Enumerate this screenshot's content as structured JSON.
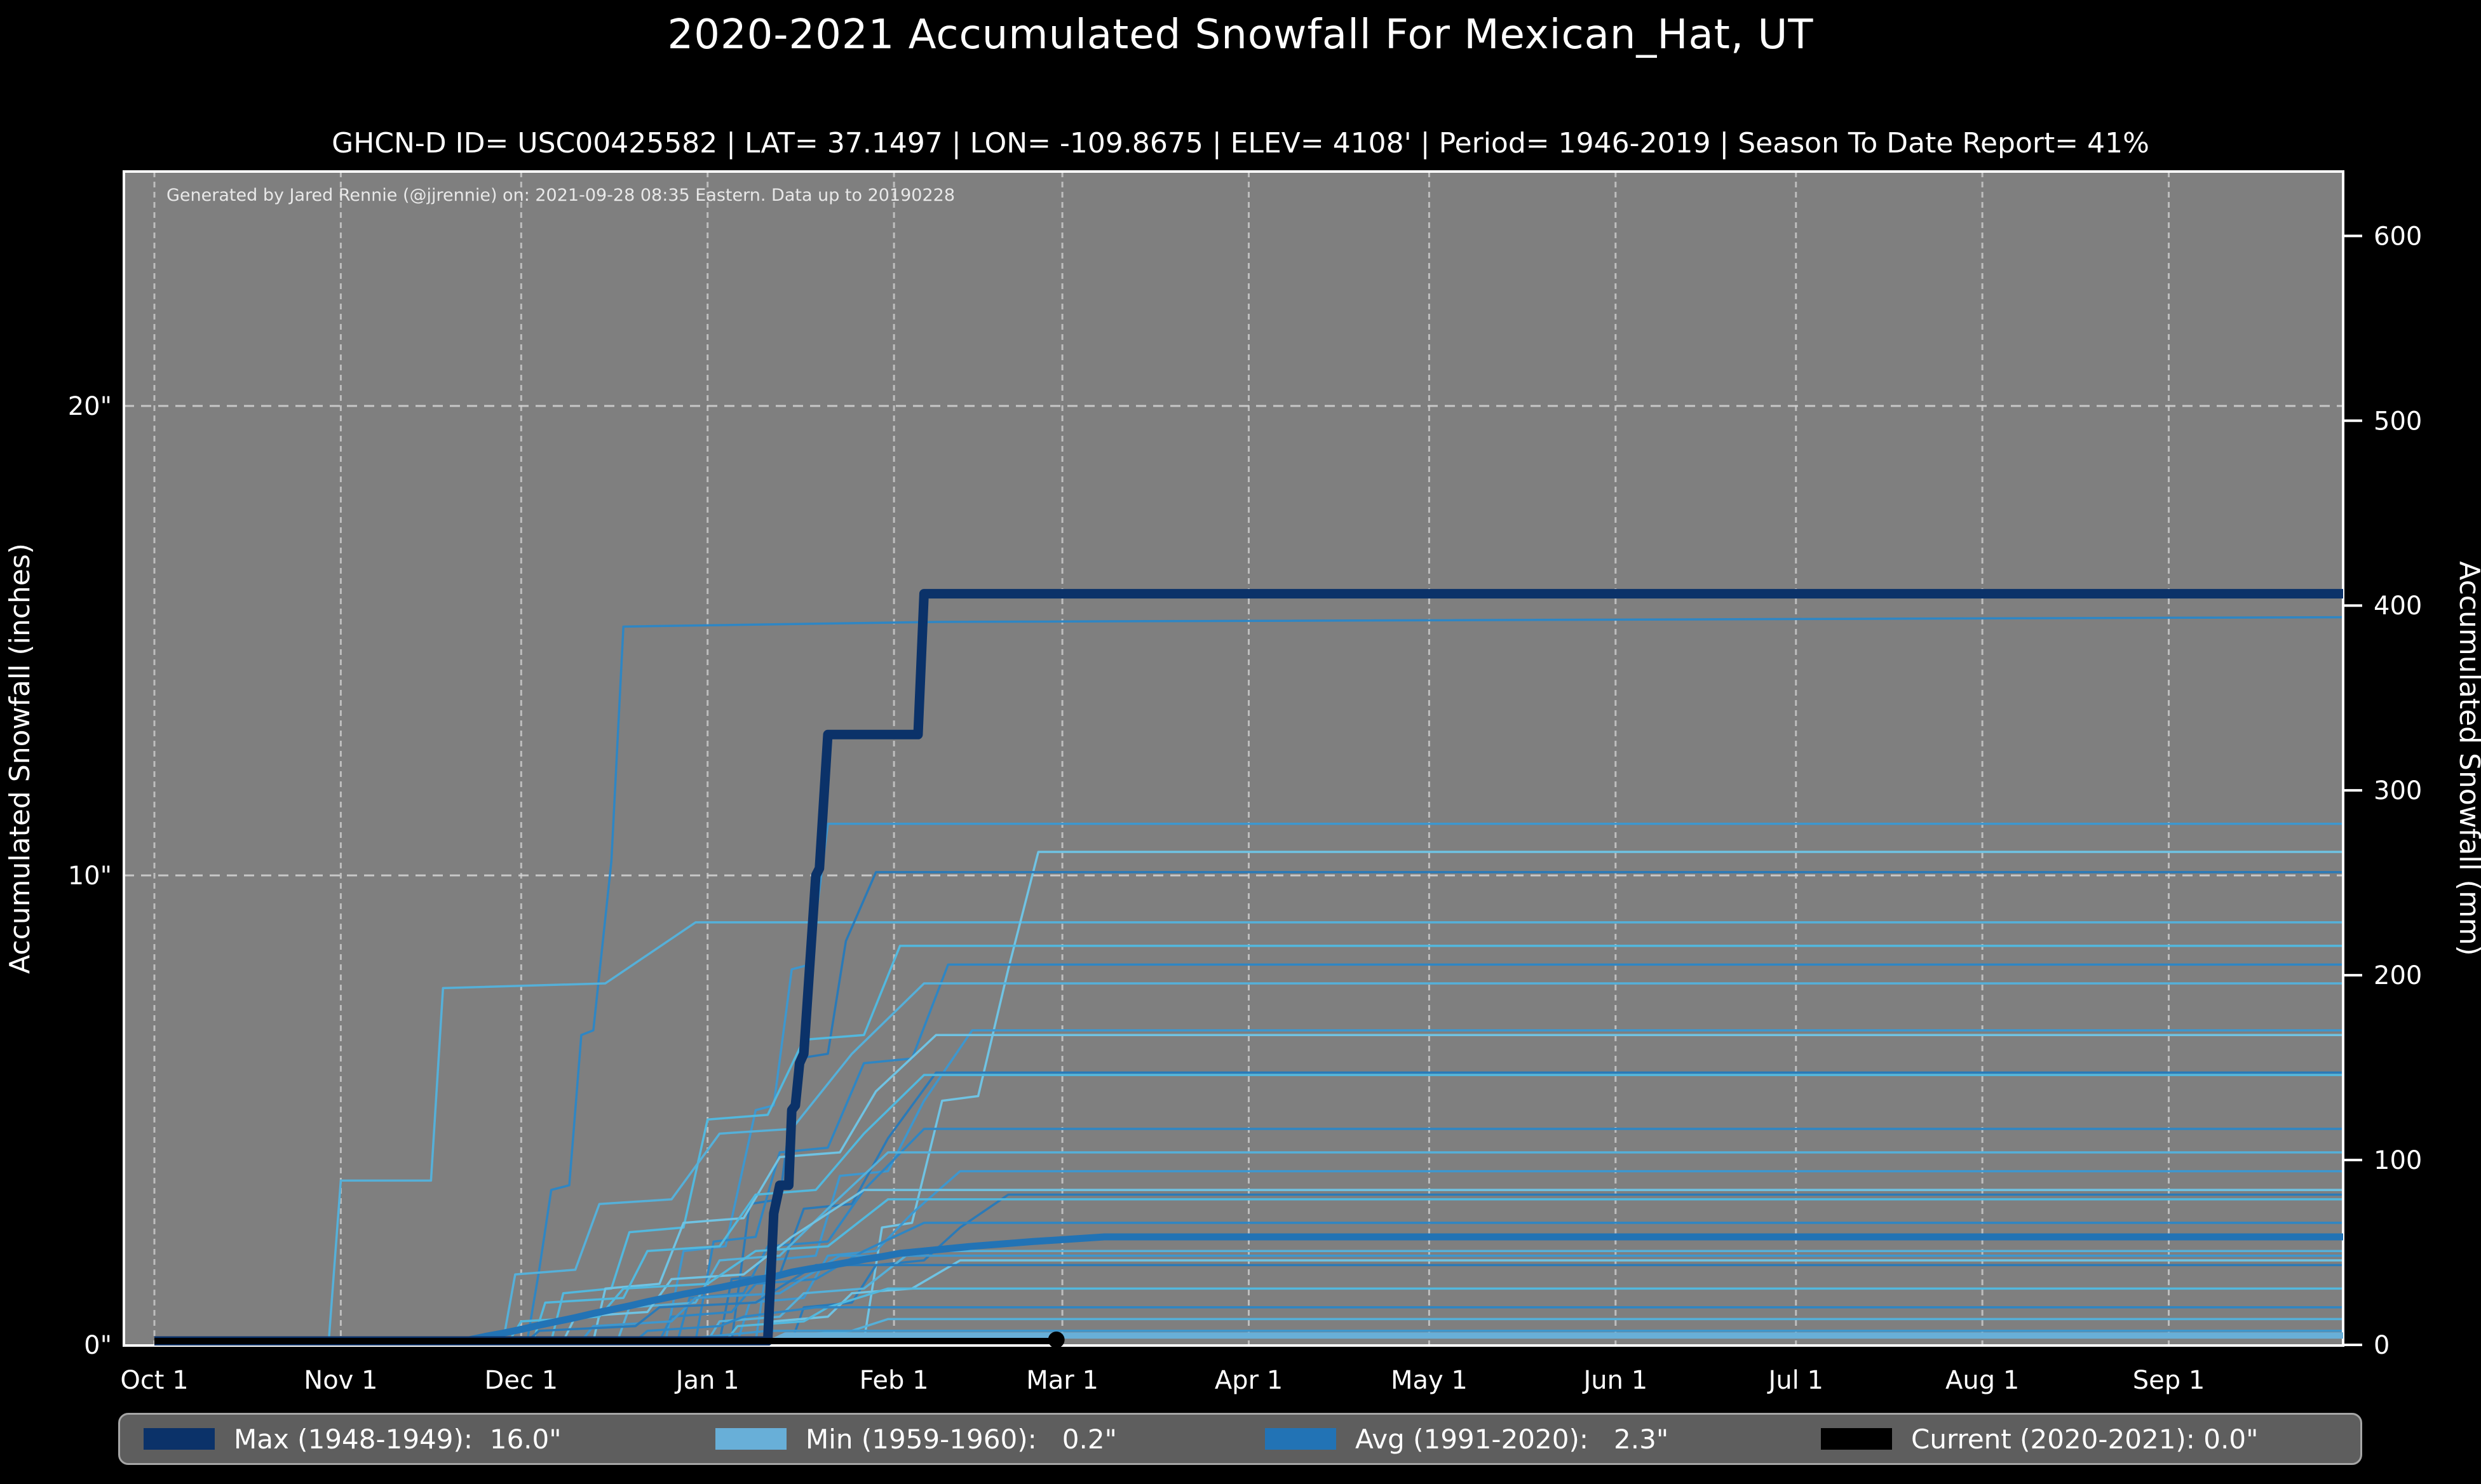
{
  "header": {
    "title": "2020-2021 Accumulated Snowfall For Mexican_Hat, UT",
    "subtitle": "GHCN-D ID= USC00425582 | LAT= 37.1497 | LON= -109.8675 | ELEV= 4108' | Period= 1946-2019 | Season To Date Report= 41%"
  },
  "attribution": "Generated by Jared Rennie (@jjrennie) on: 2021-09-28 08:35 Eastern. Data up to 20190228",
  "legend": {
    "items": [
      {
        "label": "Max (1948-1949):  16.0\"",
        "color": "#0b3269"
      },
      {
        "label": "Min (1959-1960):   0.2\"",
        "color": "#68afd8"
      },
      {
        "label": "Avg (1991-2020):   2.3\"",
        "color": "#2273b5"
      },
      {
        "label": "Current (2020-2021): 0.0\"",
        "color": "#000000"
      }
    ]
  },
  "chart_data": {
    "type": "line",
    "title": "2020-2021 Accumulated Snowfall For Mexican_Hat, UT",
    "x_axis": {
      "unit": "day-of-season (Oct 1 = 0)",
      "tick_labels": [
        "Oct 1",
        "Nov 1",
        "Dec 1",
        "Jan 1",
        "Feb 1",
        "Mar 1",
        "Apr 1",
        "May 1",
        "Jun 1",
        "Jul 1",
        "Aug 1",
        "Sep 1"
      ],
      "tick_days": [
        0,
        31,
        61,
        92,
        123,
        151,
        182,
        212,
        243,
        273,
        304,
        335
      ],
      "domain_days": [
        0,
        364
      ],
      "gridlines": "dashed vertical at each month tick"
    },
    "y_left": {
      "label": "Accumulated Snowfall (inches)",
      "ticks": [
        {
          "value": 0,
          "label": "0\""
        },
        {
          "value": 10,
          "label": "10\""
        },
        {
          "value": 20,
          "label": "20\""
        }
      ],
      "range": [
        0,
        25
      ],
      "gridlines_at": [
        10,
        20
      ]
    },
    "y_right": {
      "label": "Accumulated Snowfall (mm)",
      "ticks": [
        0,
        100,
        200,
        300,
        400,
        500,
        600
      ],
      "range_mm": [
        0,
        635
      ]
    },
    "series": [
      {
        "id": "max",
        "name": "Max (1948-1949)",
        "total_inches": 16.0,
        "color": "#0b3269",
        "width": 15,
        "points": [
          [
            0,
            0
          ],
          [
            102,
            0
          ],
          [
            103,
            2.8
          ],
          [
            104,
            3.4
          ],
          [
            105.5,
            3.4
          ],
          [
            106,
            5.0
          ],
          [
            106.6,
            5.1
          ],
          [
            107.3,
            6.0
          ],
          [
            108,
            6.2
          ],
          [
            110,
            10.0
          ],
          [
            110.6,
            10.15
          ],
          [
            112,
            13.0
          ],
          [
            127,
            13.0
          ],
          [
            128,
            16.0
          ],
          [
            364,
            16.0
          ]
        ]
      },
      {
        "id": "min",
        "name": "Min (1959-1960)",
        "total_inches": 0.2,
        "color": "#68afd8",
        "width": 10,
        "points": [
          [
            0,
            0
          ],
          [
            103,
            0
          ],
          [
            105,
            0.2
          ],
          [
            364,
            0.2
          ]
        ]
      },
      {
        "id": "avg",
        "name": "Avg (1991-2020)",
        "total_inches": 2.3,
        "color": "#2273b5",
        "width": 11,
        "points": [
          [
            0,
            0
          ],
          [
            45,
            0.02
          ],
          [
            52,
            0.1
          ],
          [
            55,
            0.18
          ],
          [
            58,
            0.25
          ],
          [
            61,
            0.33
          ],
          [
            64,
            0.42
          ],
          [
            67,
            0.5
          ],
          [
            70,
            0.58
          ],
          [
            73,
            0.67
          ],
          [
            76,
            0.75
          ],
          [
            79,
            0.83
          ],
          [
            82,
            0.92
          ],
          [
            85,
            1.0
          ],
          [
            88,
            1.08
          ],
          [
            91,
            1.15
          ],
          [
            94,
            1.22
          ],
          [
            97,
            1.3
          ],
          [
            100,
            1.38
          ],
          [
            103,
            1.45
          ],
          [
            106,
            1.55
          ],
          [
            109,
            1.62
          ],
          [
            112,
            1.68
          ],
          [
            115,
            1.75
          ],
          [
            118,
            1.82
          ],
          [
            121,
            1.88
          ],
          [
            124,
            1.95
          ],
          [
            128,
            2.0
          ],
          [
            132,
            2.05
          ],
          [
            136,
            2.1
          ],
          [
            141,
            2.15
          ],
          [
            146,
            2.2
          ],
          [
            152,
            2.25
          ],
          [
            158,
            2.3
          ],
          [
            364,
            2.3
          ]
        ]
      },
      {
        "id": "current",
        "name": "Current (2020-2021)",
        "total_inches": 0.0,
        "color": "#000000",
        "width": 10,
        "end_marker": true,
        "points": [
          [
            0,
            0
          ],
          [
            150,
            0
          ]
        ]
      }
    ],
    "background_seasons": {
      "description": "Individual seasons 1946-2019 drawn as thin blue staircase lines",
      "color_cycle": [
        "#2e86c4",
        "#55b0d9",
        "#3d97cf",
        "#6fc3e3",
        "#2a7ab8",
        "#52b8de"
      ],
      "lines": [
        [
          [
            62,
            0
          ],
          [
            64,
            1.6
          ],
          [
            66,
            3.3
          ],
          [
            69,
            3.4
          ],
          [
            71,
            6.6
          ],
          [
            73,
            6.7
          ],
          [
            76,
            10.3
          ],
          [
            78,
            15.3
          ],
          [
            130,
            15.4
          ],
          [
            364,
            15.5
          ]
        ],
        [
          [
            29,
            0
          ],
          [
            31,
            3.5
          ],
          [
            46,
            3.5
          ],
          [
            48,
            7.6
          ],
          [
            75,
            7.7
          ],
          [
            90,
            9.0
          ],
          [
            364,
            9.0
          ]
        ],
        [
          [
            85,
            0
          ],
          [
            88,
            2.0
          ],
          [
            95,
            2.1
          ],
          [
            100,
            5.0
          ],
          [
            103,
            5.1
          ],
          [
            106,
            8.0
          ],
          [
            109,
            8.1
          ],
          [
            112,
            11.1
          ],
          [
            364,
            11.1
          ]
        ],
        [
          [
            118,
            0
          ],
          [
            121,
            2.5
          ],
          [
            126,
            2.6
          ],
          [
            131,
            5.2
          ],
          [
            137,
            5.3
          ],
          [
            142,
            8.0
          ],
          [
            147,
            10.5
          ],
          [
            364,
            10.5
          ]
        ],
        [
          [
            96,
            0
          ],
          [
            99,
            3.0
          ],
          [
            104,
            3.1
          ],
          [
            107,
            6.1
          ],
          [
            112,
            6.2
          ],
          [
            115,
            8.6
          ],
          [
            120,
            10.07
          ],
          [
            364,
            10.07
          ]
        ],
        [
          [
            66,
            0
          ],
          [
            68,
            1.1
          ],
          [
            76,
            1.2
          ],
          [
            79,
            2.4
          ],
          [
            88,
            2.5
          ],
          [
            92,
            4.8
          ],
          [
            102,
            4.9
          ],
          [
            108,
            6.5
          ],
          [
            118,
            6.6
          ],
          [
            124,
            8.5
          ],
          [
            364,
            8.5
          ]
        ],
        [
          [
            90,
            0
          ],
          [
            93,
            2.2
          ],
          [
            100,
            2.3
          ],
          [
            104,
            4.1
          ],
          [
            112,
            4.2
          ],
          [
            118,
            6.0
          ],
          [
            126,
            6.1
          ],
          [
            132,
            8.1
          ],
          [
            364,
            8.1
          ]
        ],
        [
          [
            58,
            0
          ],
          [
            60,
            1.5
          ],
          [
            70,
            1.6
          ],
          [
            74,
            3.0
          ],
          [
            86,
            3.1
          ],
          [
            94,
            4.5
          ],
          [
            106,
            4.6
          ],
          [
            116,
            6.2
          ],
          [
            128,
            7.7
          ],
          [
            364,
            7.7
          ]
        ],
        [
          [
            100,
            0
          ],
          [
            102,
            1.8
          ],
          [
            110,
            1.9
          ],
          [
            114,
            3.6
          ],
          [
            122,
            3.7
          ],
          [
            128,
            5.2
          ],
          [
            136,
            6.7
          ],
          [
            364,
            6.7
          ]
        ],
        [
          [
            73,
            0
          ],
          [
            75,
            1.2
          ],
          [
            84,
            1.3
          ],
          [
            88,
            2.6
          ],
          [
            98,
            2.7
          ],
          [
            104,
            4.0
          ],
          [
            114,
            4.1
          ],
          [
            120,
            5.4
          ],
          [
            130,
            6.6
          ],
          [
            364,
            6.6
          ]
        ],
        [
          [
            94,
            0
          ],
          [
            96,
            1.4
          ],
          [
            104,
            1.5
          ],
          [
            108,
            2.9
          ],
          [
            116,
            3.0
          ],
          [
            122,
            4.4
          ],
          [
            130,
            5.8
          ],
          [
            364,
            5.8
          ]
        ],
        [
          [
            63,
            0
          ],
          [
            65,
            0.9
          ],
          [
            78,
            1.0
          ],
          [
            82,
            2.0
          ],
          [
            94,
            2.1
          ],
          [
            100,
            3.2
          ],
          [
            110,
            3.3
          ],
          [
            118,
            4.5
          ],
          [
            128,
            5.75
          ],
          [
            364,
            5.75
          ]
        ],
        [
          [
            87,
            0
          ],
          [
            89,
            1.0
          ],
          [
            98,
            1.1
          ],
          [
            102,
            2.1
          ],
          [
            112,
            2.2
          ],
          [
            118,
            3.3
          ],
          [
            128,
            4.6
          ],
          [
            364,
            4.6
          ]
        ],
        [
          [
            77,
            0
          ],
          [
            79,
            0.8
          ],
          [
            90,
            0.9
          ],
          [
            94,
            1.8
          ],
          [
            104,
            1.9
          ],
          [
            112,
            2.9
          ],
          [
            122,
            4.1
          ],
          [
            364,
            4.1
          ]
        ],
        [
          [
            97,
            0
          ],
          [
            99,
            0.9
          ],
          [
            108,
            1.0
          ],
          [
            112,
            1.9
          ],
          [
            120,
            2.0
          ],
          [
            126,
            2.8
          ],
          [
            134,
            3.7
          ],
          [
            364,
            3.7
          ]
        ],
        [
          [
            68,
            0
          ],
          [
            70,
            0.6
          ],
          [
            82,
            0.7
          ],
          [
            86,
            1.4
          ],
          [
            98,
            1.5
          ],
          [
            106,
            2.3
          ],
          [
            118,
            3.3
          ],
          [
            364,
            3.3
          ]
        ],
        [
          [
            106,
            0
          ],
          [
            108,
            0.8
          ],
          [
            116,
            0.9
          ],
          [
            120,
            1.7
          ],
          [
            128,
            1.8
          ],
          [
            134,
            2.5
          ],
          [
            142,
            3.2
          ],
          [
            364,
            3.2
          ]
        ],
        [
          [
            59,
            0
          ],
          [
            61,
            0.5
          ],
          [
            74,
            0.6
          ],
          [
            78,
            1.2
          ],
          [
            92,
            1.3
          ],
          [
            100,
            2.0
          ],
          [
            112,
            2.1
          ],
          [
            122,
            3.1
          ],
          [
            364,
            3.1
          ]
        ],
        [
          [
            84,
            0
          ],
          [
            86,
            0.6
          ],
          [
            96,
            0.7
          ],
          [
            100,
            1.3
          ],
          [
            110,
            1.4
          ],
          [
            118,
            2.0
          ],
          [
            128,
            2.6
          ],
          [
            364,
            2.6
          ]
        ],
        [
          [
            92,
            0
          ],
          [
            94,
            0.5
          ],
          [
            104,
            0.6
          ],
          [
            108,
            1.1
          ],
          [
            118,
            1.2
          ],
          [
            126,
            2.0
          ],
          [
            364,
            2.0
          ]
        ],
        [
          [
            71,
            0
          ],
          [
            73,
            0.4
          ],
          [
            86,
            0.5
          ],
          [
            90,
            1.0
          ],
          [
            104,
            1.1
          ],
          [
            114,
            1.9
          ],
          [
            364,
            1.9
          ]
        ],
        [
          [
            101,
            0
          ],
          [
            103,
            0.5
          ],
          [
            112,
            0.6
          ],
          [
            116,
            1.1
          ],
          [
            126,
            1.2
          ],
          [
            134,
            1.8
          ],
          [
            364,
            1.8
          ]
        ],
        [
          [
            62,
            0
          ],
          [
            64,
            0.3
          ],
          [
            80,
            0.4
          ],
          [
            84,
            0.8
          ],
          [
            100,
            0.9
          ],
          [
            110,
            1.7
          ],
          [
            364,
            1.7
          ]
        ],
        [
          [
            95,
            0
          ],
          [
            97,
            0.4
          ],
          [
            108,
            0.5
          ],
          [
            112,
            0.8
          ],
          [
            122,
            1.2
          ],
          [
            364,
            1.2
          ]
        ],
        [
          [
            80,
            0
          ],
          [
            82,
            0.3
          ],
          [
            94,
            0.4
          ],
          [
            98,
            0.6
          ],
          [
            110,
            0.8
          ],
          [
            364,
            0.8
          ]
        ],
        [
          [
            104,
            0
          ],
          [
            106,
            0.2
          ],
          [
            116,
            0.3
          ],
          [
            122,
            0.55
          ],
          [
            364,
            0.55
          ]
        ],
        [
          [
            88,
            0
          ],
          [
            90,
            0.15
          ],
          [
            102,
            0.3
          ],
          [
            364,
            0.3
          ]
        ]
      ]
    },
    "colors": {
      "figure_bg": "#000000",
      "plot_bg": "#7f7f7f",
      "grid": "#d4d4d4",
      "text": "#ffffff",
      "spine": "#ffffff"
    },
    "legend_position": "bottom, full-width rounded gray box"
  }
}
